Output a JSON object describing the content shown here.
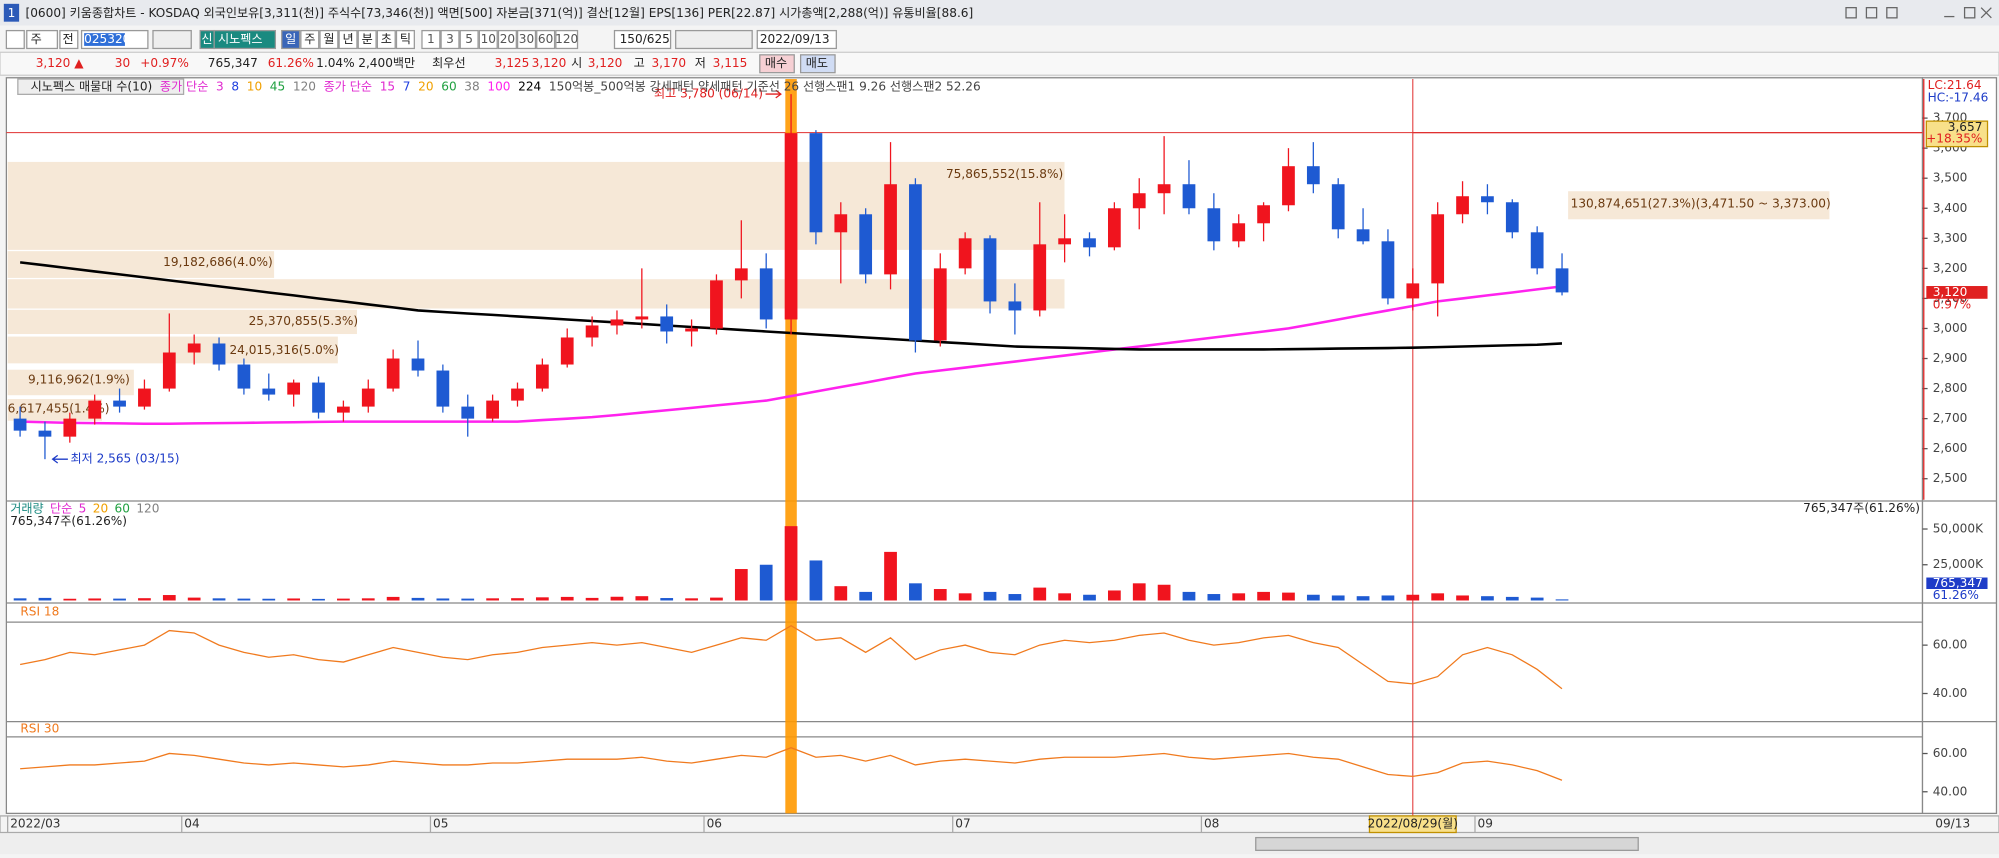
{
  "window": {
    "number": "1",
    "title": "[0600] 키움종합차트 - KOSDAQ 외국인보유[3,311(천)] 주식수[73,346(천)] 액면[500] 자본금[371(억)] 결산[12월] EPS[136] PER[22.87] 시가총액[2,288(억)] 유통비율[88.6]"
  },
  "toolbar": {
    "unit": "주",
    "prev": "전",
    "code": "025320",
    "badge": "신",
    "name": "시노펙스",
    "periods": [
      "일",
      "주",
      "월",
      "년",
      "분",
      "초",
      "틱"
    ],
    "intervals": [
      "1",
      "3",
      "5",
      "10",
      "20",
      "30",
      "60",
      "120"
    ],
    "count": "150/625",
    "date": "2022/09/13"
  },
  "quote": {
    "price": "3,120 ▲",
    "change": "30",
    "rate": "+0.97%",
    "volume": "765,347",
    "volume_rate": "61.26%",
    "turnover": "1.04%",
    "amount": "2,400백만",
    "best_label": "최우선",
    "ask": "3,125",
    "bid": "3,120",
    "open_label": "시",
    "open": "3,120",
    "high_label": "고",
    "high": "3,170",
    "low_label": "저",
    "low": "3,115",
    "buy": "매수",
    "sell": "매도"
  },
  "chart_data": [
    {
      "type": "candlestick",
      "title": "시노펙스 매물대 수(10)",
      "legend": [
        {
          "label": "종가 단순",
          "items": [
            {
              "text": "3",
              "color": "#e02ad0"
            },
            {
              "text": "8",
              "color": "#2040e0"
            },
            {
              "text": "10",
              "color": "#f0a000"
            },
            {
              "text": "45",
              "color": "#20a040"
            },
            {
              "text": "120",
              "color": "#808080"
            }
          ]
        },
        {
          "label": "종가 단순",
          "items": [
            {
              "text": "15",
              "color": "#e02ad0"
            },
            {
              "text": "7",
              "color": "#2040e0"
            },
            {
              "text": "20",
              "color": "#f0a000"
            },
            {
              "text": "60",
              "color": "#20a040"
            },
            {
              "text": "38",
              "color": "#808080"
            }
          ]
        }
      ],
      "legend_extra": "150억봉_500억봉 강세패턴 약세패턴 기준선 26 선행스팬1 9.26 선행스팬2 52.26",
      "categories": [
        "2022/03",
        null,
        null,
        null,
        null,
        null,
        null,
        "04",
        null,
        null,
        null,
        null,
        null,
        null,
        null,
        null,
        null,
        "05",
        null,
        null,
        null,
        null,
        null,
        null,
        null,
        null,
        null,
        null,
        "06",
        null,
        null,
        null,
        null,
        null,
        null,
        null,
        null,
        null,
        "07",
        null,
        null,
        null,
        null,
        null,
        null,
        null,
        null,
        null,
        "08",
        null,
        null,
        null,
        null,
        null,
        null,
        null,
        null,
        null,
        null,
        "09",
        null,
        null,
        null
      ],
      "open": [
        2700,
        2660,
        2640,
        2700,
        2760,
        2740,
        2800,
        2920,
        2950,
        2880,
        2800,
        2780,
        2820,
        2720,
        2740,
        2800,
        2900,
        2860,
        2740,
        2700,
        2760,
        2800,
        2880,
        2970,
        3010,
        3030,
        3040,
        2990,
        3000,
        3160,
        3200,
        3030,
        3650,
        3320,
        3380,
        3180,
        3480,
        2960,
        3200,
        3300,
        3090,
        3060,
        3280,
        3300,
        3270,
        3400,
        3450,
        3480,
        3400,
        3290,
        3350,
        3410,
        3540,
        3480,
        3330,
        3290,
        3100,
        3150,
        3380,
        3440,
        3420,
        3320,
        3200
      ],
      "high": [
        2740,
        2690,
        2720,
        2780,
        2800,
        2830,
        3050,
        2980,
        2970,
        2900,
        2850,
        2830,
        2840,
        2760,
        2830,
        2930,
        2960,
        2880,
        2780,
        2780,
        2820,
        2900,
        3000,
        3040,
        3060,
        3200,
        3080,
        3030,
        3180,
        3360,
        3250,
        3780,
        3660,
        3420,
        3400,
        3620,
        3500,
        3250,
        3320,
        3310,
        3150,
        3420,
        3380,
        3320,
        3420,
        3500,
        3640,
        3560,
        3450,
        3380,
        3420,
        3600,
        3620,
        3500,
        3400,
        3330,
        3200,
        3420,
        3490,
        3480,
        3430,
        3340,
        3250
      ],
      "low": [
        2640,
        2565,
        2620,
        2680,
        2720,
        2730,
        2790,
        2880,
        2860,
        2780,
        2760,
        2740,
        2700,
        2690,
        2720,
        2790,
        2840,
        2720,
        2640,
        2690,
        2740,
        2790,
        2870,
        2940,
        2980,
        3000,
        2950,
        2940,
        2980,
        3100,
        3000,
        2980,
        3280,
        3150,
        3150,
        3130,
        2920,
        2940,
        3180,
        3050,
        2980,
        3040,
        3220,
        3240,
        3260,
        3330,
        3380,
        3380,
        3260,
        3270,
        3290,
        3390,
        3450,
        3300,
        3280,
        3080,
        3060,
        3040,
        3350,
        3380,
        3300,
        3180,
        3110
      ],
      "close": [
        2660,
        2640,
        2700,
        2760,
        2740,
        2800,
        2920,
        2950,
        2880,
        2800,
        2780,
        2820,
        2720,
        2740,
        2800,
        2900,
        2860,
        2740,
        2700,
        2760,
        2800,
        2880,
        2970,
        3010,
        3030,
        3040,
        2990,
        3000,
        3160,
        3200,
        3030,
        3650,
        3320,
        3380,
        3180,
        3480,
        2960,
        3200,
        3300,
        3090,
        3060,
        3280,
        3300,
        3270,
        3400,
        3450,
        3480,
        3400,
        3290,
        3350,
        3410,
        3540,
        3480,
        3330,
        3290,
        3100,
        3150,
        3380,
        3440,
        3420,
        3320,
        3200,
        3120
      ],
      "up_color": "#f0141e",
      "down_color": "#1e5ad2",
      "series": [
        {
          "name": "100",
          "color": "#ff22ee",
          "values": [
            2690,
            2688,
            2686,
            2685,
            2684,
            2683,
            2683,
            2684,
            2685,
            2686,
            2687,
            2688,
            2689,
            2690,
            2690,
            2690,
            2690,
            2690,
            2690,
            2690,
            2690,
            2695,
            2700,
            2705,
            2712,
            2720,
            2728,
            2736,
            2744,
            2752,
            2760,
            2775,
            2790,
            2805,
            2820,
            2835,
            2850,
            2860,
            2870,
            2880,
            2890,
            2900,
            2910,
            2920,
            2930,
            2940,
            2950,
            2960,
            2970,
            2980,
            2990,
            3000,
            3015,
            3030,
            3045,
            3060,
            3075,
            3090,
            3100,
            3110,
            3120,
            3130,
            3140
          ]
        },
        {
          "name": "224",
          "color": "#000000",
          "values": [
            3220,
            3210,
            3200,
            3190,
            3180,
            3170,
            3160,
            3150,
            3140,
            3130,
            3120,
            3110,
            3100,
            3090,
            3080,
            3070,
            3060,
            3055,
            3050,
            3045,
            3040,
            3035,
            3030,
            3025,
            3020,
            3015,
            3010,
            3005,
            3000,
            2995,
            2990,
            2985,
            2980,
            2975,
            2970,
            2965,
            2960,
            2955,
            2950,
            2945,
            2940,
            2938,
            2936,
            2934,
            2932,
            2930,
            2930,
            2930,
            2930,
            2930,
            2930,
            2931,
            2932,
            2933,
            2934,
            2935,
            2936,
            2938,
            2940,
            2942,
            2944,
            2946,
            2950
          ]
        }
      ],
      "ylim": [
        2430,
        3830
      ],
      "yticks": [
        {
          "value": 2500,
          "label": "2,500"
        },
        {
          "value": 2600,
          "label": "2,600"
        },
        {
          "value": 2700,
          "label": "2,700"
        },
        {
          "value": 2800,
          "label": "2,800"
        },
        {
          "value": 2900,
          "label": "2,900"
        },
        {
          "value": 3000,
          "label": "3,000"
        },
        {
          "value": 3100,
          "label": "3,100"
        },
        {
          "value": 3200,
          "label": "3,200"
        },
        {
          "value": 3300,
          "label": "3,300"
        },
        {
          "value": 3400,
          "label": "3,400"
        },
        {
          "value": 3500,
          "label": "3,500"
        },
        {
          "value": 3600,
          "label": "3,600"
        },
        {
          "value": 3700,
          "label": "3,700"
        }
      ],
      "high_label": "최고 3,780 (06/14)",
      "low_label": "최저 2,565 (03/15)",
      "lc_label": "LC:21.64",
      "hc_label": "HC:-17.46",
      "tag_price": "3,657",
      "tag_rate": "+18.35%",
      "last_price_label": "3,120",
      "last_rate_label": "0.97%",
      "volume_profile": [
        "75,865,552(15.8%)",
        "19,182,686(4.0%)",
        "25,370,855(5.3%)",
        "24,015,316(5.0%)",
        "9,116,962(1.9%)",
        "6,617,455(1.4%)",
        "130,874,651(27.3%)(3,471.50 ~ 3,373.00)"
      ],
      "crosshair_date": "2022/08/29(월)",
      "last_date": "09/13"
    },
    {
      "type": "bar",
      "legend_label": "거래량",
      "legend": [
        {
          "text": "단순",
          "color": "#e02ad0"
        },
        {
          "text": "5",
          "color": "#e02ad0"
        },
        {
          "text": "20",
          "color": "#f0a000"
        },
        {
          "text": "60",
          "color": "#20a040"
        },
        {
          "text": "120",
          "color": "#808080"
        }
      ],
      "subtitle": "765,347주(61.26%)",
      "right_label": "765,347주(61.26%)",
      "last_value_label": "765,347",
      "last_rate_label": "61.26%",
      "values": [
        1500,
        1800,
        1200,
        1400,
        1300,
        1600,
        3800,
        2000,
        1500,
        1300,
        1200,
        1400,
        1100,
        1300,
        1500,
        2500,
        1800,
        1400,
        1300,
        1500,
        1600,
        2200,
        2500,
        1800,
        2600,
        3000,
        1700,
        1500,
        2000,
        22000,
        25000,
        52000,
        28000,
        10000,
        6000,
        34000,
        12000,
        8000,
        5000,
        6000,
        4500,
        9000,
        5000,
        4000,
        7000,
        12000,
        11000,
        6000,
        4500,
        5000,
        6000,
        5500,
        4000,
        3500,
        3000,
        3500,
        4000,
        5000,
        3500,
        3000,
        2500,
        2000,
        765.347
      ],
      "ylim": [
        0,
        67800
      ],
      "yticks": [
        {
          "value": 25000,
          "label": "25,000K"
        },
        {
          "value": 50000,
          "label": "50,000K"
        }
      ]
    },
    {
      "type": "line",
      "title": "RSI 18",
      "color": "#f07a1e",
      "values": [
        52,
        54,
        57,
        56,
        58,
        60,
        66,
        65,
        60,
        57,
        55,
        56,
        54,
        53,
        56,
        59,
        57,
        55,
        54,
        56,
        57,
        59,
        60,
        61,
        60,
        61,
        59,
        57,
        60,
        63,
        62,
        68,
        62,
        63,
        57,
        63,
        54,
        58,
        60,
        57,
        56,
        60,
        62,
        61,
        62,
        64,
        65,
        62,
        60,
        61,
        63,
        64,
        61,
        59,
        52,
        45,
        44,
        47,
        56,
        59,
        56,
        50,
        42
      ],
      "ylim": [
        30.5,
        69.5
      ],
      "yticks": [
        {
          "value": 40,
          "label": "40.00"
        },
        {
          "value": 60,
          "label": "60.00"
        }
      ]
    },
    {
      "type": "line",
      "title": "RSI 30",
      "color": "#f07a1e",
      "values": [
        52,
        53,
        54,
        54,
        55,
        56,
        60,
        59,
        57,
        55,
        54,
        55,
        54,
        53,
        54,
        56,
        55,
        54,
        54,
        55,
        55,
        56,
        57,
        57,
        57,
        58,
        56,
        55,
        57,
        59,
        58,
        63,
        58,
        59,
        56,
        59,
        54,
        56,
        57,
        56,
        55,
        57,
        58,
        58,
        58,
        59,
        60,
        58,
        57,
        58,
        59,
        60,
        58,
        57,
        53,
        49,
        48,
        50,
        55,
        56,
        54,
        51,
        46
      ],
      "ylim": [
        28.7,
        68.7
      ],
      "yticks": [
        {
          "value": 40,
          "label": "40.00"
        },
        {
          "value": 60,
          "label": "60.00"
        }
      ]
    }
  ]
}
